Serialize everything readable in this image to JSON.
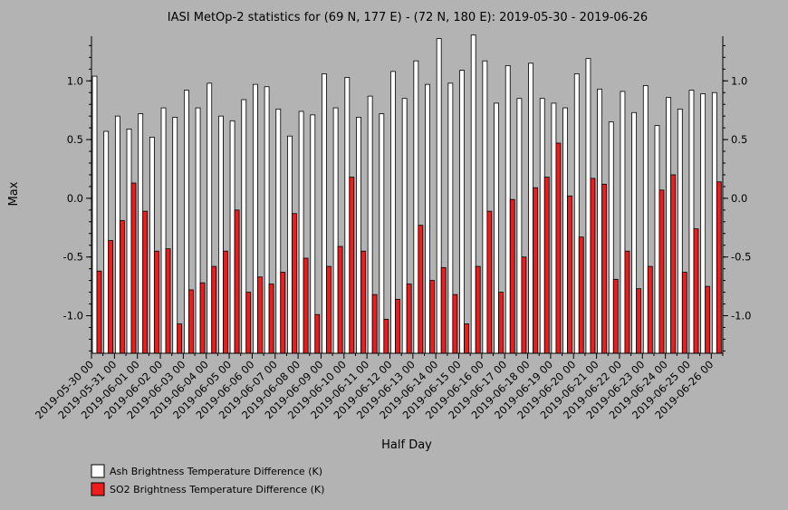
{
  "colors": {
    "background": "#b3b3b3",
    "ash": "#ffffff",
    "so2": "#ee1c1c",
    "axis": "#000000"
  },
  "chart_data": {
    "type": "bar",
    "title": "IASI MetOp-2 statistics for (69 N, 177 E) - (72 N, 180 E): 2019-05-30 - 2019-06-26",
    "xlabel": "Half Day",
    "ylabel": "Max",
    "ylim": [
      -1.32,
      1.38
    ],
    "yticks": [
      -1.0,
      -0.5,
      0.0,
      0.5,
      1.0
    ],
    "ytick_labels": [
      "-1.0",
      "-0.5",
      "0.0",
      "0.5",
      "1.0"
    ],
    "grid": false,
    "legend_position": "bottom-left",
    "x_tick_labels": [
      "2019-05-30 00",
      "2019-05-31 00",
      "2019-06-01 00",
      "2019-06-02 00",
      "2019-06-03 00",
      "2019-06-04 00",
      "2019-06-05 00",
      "2019-06-06 00",
      "2019-06-07 00",
      "2019-06-08 00",
      "2019-06-09 00",
      "2019-06-10 00",
      "2019-06-11 00",
      "2019-06-12 00",
      "2019-06-13 00",
      "2019-06-14 00",
      "2019-06-15 00",
      "2019-06-16 00",
      "2019-06-17 00",
      "2019-06-18 00",
      "2019-06-19 00",
      "2019-06-20 00",
      "2019-06-21 00",
      "2019-06-22 00",
      "2019-06-23 00",
      "2019-06-24 00",
      "2019-06-25 00",
      "2019-06-26 00"
    ],
    "series": [
      {
        "name": "Ash Brightness Temperature Difference (K)",
        "color": "#ffffff",
        "values": [
          1.04,
          0.57,
          0.7,
          0.59,
          0.72,
          0.52,
          0.77,
          0.69,
          0.92,
          0.77,
          0.98,
          0.7,
          0.66,
          0.84,
          0.97,
          0.95,
          0.76,
          0.53,
          0.74,
          0.71,
          1.06,
          0.77,
          1.03,
          0.69,
          0.87,
          0.72,
          1.08,
          0.85,
          1.17,
          0.97,
          1.36,
          0.98,
          1.09,
          1.39,
          1.17,
          0.81,
          1.13,
          0.85,
          1.15,
          0.85,
          0.81,
          0.77,
          1.06,
          1.19,
          0.93,
          0.65,
          0.91,
          0.73,
          0.96,
          0.62,
          0.86,
          0.76,
          0.92,
          0.89,
          0.9
        ]
      },
      {
        "name": "SO2 Brightness Temperature Difference (K)",
        "color": "#ee1c1c",
        "values": [
          -0.62,
          -0.36,
          -0.19,
          0.13,
          -0.11,
          -0.45,
          -0.43,
          -1.07,
          -0.78,
          -0.72,
          -0.58,
          -0.45,
          -0.1,
          -0.8,
          -0.67,
          -0.73,
          -0.63,
          -0.13,
          -0.51,
          -0.99,
          -0.58,
          -0.41,
          0.18,
          -0.45,
          -0.82,
          -1.03,
          -0.86,
          -0.73,
          -0.23,
          -0.7,
          -0.59,
          -0.82,
          -1.07,
          -0.58,
          -0.11,
          -0.8,
          -0.01,
          -0.5,
          0.09,
          0.18,
          0.47,
          0.02,
          -0.33,
          0.17,
          0.12,
          -0.69,
          -0.45,
          -0.77,
          -0.58,
          0.07,
          0.2,
          -0.63,
          -0.26,
          -0.75,
          0.14
        ]
      }
    ]
  }
}
